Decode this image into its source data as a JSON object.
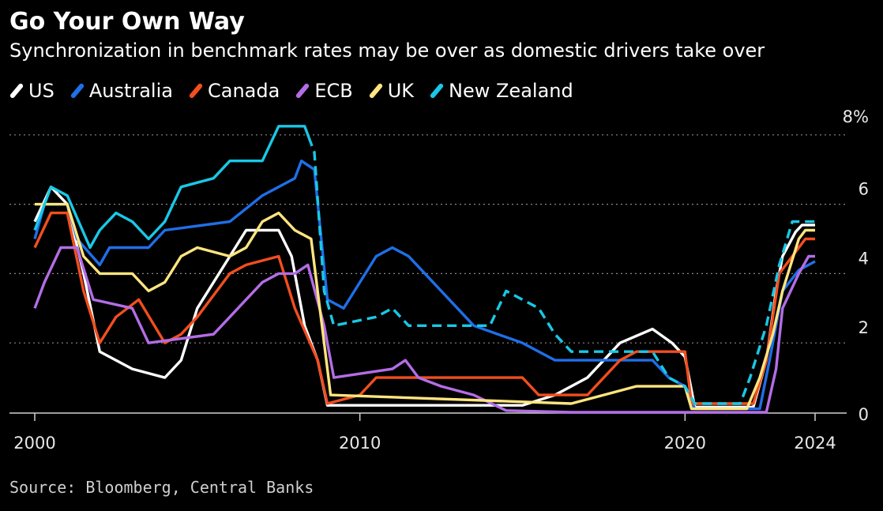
{
  "chart_data": {
    "type": "line",
    "title": "Go Your Own Way",
    "subtitle": "Synchronization in benchmark rates may be over as domestic drivers take over",
    "source": "Source: Bloomberg, Central Banks",
    "xlim": [
      2000,
      2024.6
    ],
    "ylim": [
      0,
      8.2
    ],
    "x_ticks": [
      {
        "value": 2000,
        "label": "2000"
      },
      {
        "value": 2010,
        "label": "2010"
      },
      {
        "value": 2020,
        "label": "2020"
      },
      {
        "value": 2024,
        "label": "2024"
      }
    ],
    "y_ticks": [
      {
        "value": 0,
        "label": "0"
      },
      {
        "value": 2,
        "label": "2"
      },
      {
        "value": 4,
        "label": "4"
      },
      {
        "value": 6,
        "label": "6"
      },
      {
        "value": 8,
        "label": "8%"
      }
    ],
    "grid": "horizontal dotted",
    "legend_position": "top-left",
    "series": [
      {
        "name": "US",
        "color": "#ffffff",
        "dashed_after": null,
        "points": [
          [
            2000,
            5.5
          ],
          [
            2000.5,
            6.5
          ],
          [
            2001,
            6.0
          ],
          [
            2001.5,
            4.0
          ],
          [
            2002,
            1.75
          ],
          [
            2003,
            1.25
          ],
          [
            2004,
            1.0
          ],
          [
            2004.5,
            1.5
          ],
          [
            2005,
            3.0
          ],
          [
            2006,
            4.5
          ],
          [
            2006.5,
            5.25
          ],
          [
            2007.5,
            5.25
          ],
          [
            2007.9,
            4.5
          ],
          [
            2008.3,
            2.5
          ],
          [
            2008.7,
            1.5
          ],
          [
            2009,
            0.2
          ],
          [
            2015,
            0.2
          ],
          [
            2016,
            0.5
          ],
          [
            2017,
            1.0
          ],
          [
            2018,
            2.0
          ],
          [
            2019,
            2.4
          ],
          [
            2019.6,
            2.0
          ],
          [
            2020,
            1.6
          ],
          [
            2020.3,
            0.15
          ],
          [
            2022.1,
            0.15
          ],
          [
            2022.5,
            1.5
          ],
          [
            2022.8,
            3.5
          ],
          [
            2023,
            4.5
          ],
          [
            2023.4,
            5.2
          ],
          [
            2023.6,
            5.4
          ],
          [
            2024,
            5.4
          ]
        ]
      },
      {
        "name": "Australia",
        "color": "#1f6fe8",
        "dashed_after": null,
        "points": [
          [
            2000,
            5.0
          ],
          [
            2000.3,
            6.0
          ],
          [
            2001,
            6.0
          ],
          [
            2001.3,
            5.0
          ],
          [
            2002,
            4.25
          ],
          [
            2002.3,
            4.75
          ],
          [
            2003.5,
            4.75
          ],
          [
            2004,
            5.25
          ],
          [
            2006,
            5.5
          ],
          [
            2007,
            6.25
          ],
          [
            2008,
            6.75
          ],
          [
            2008.2,
            7.25
          ],
          [
            2008.6,
            7.0
          ],
          [
            2009,
            3.25
          ],
          [
            2009.5,
            3.0
          ],
          [
            2010,
            3.75
          ],
          [
            2010.5,
            4.5
          ],
          [
            2011,
            4.75
          ],
          [
            2011.5,
            4.5
          ],
          [
            2012,
            4.0
          ],
          [
            2012.5,
            3.5
          ],
          [
            2013,
            3.0
          ],
          [
            2013.5,
            2.5
          ],
          [
            2015,
            2.0
          ],
          [
            2016,
            1.5
          ],
          [
            2019,
            1.5
          ],
          [
            2019.5,
            1.0
          ],
          [
            2020,
            0.75
          ],
          [
            2020.3,
            0.1
          ],
          [
            2022.3,
            0.1
          ],
          [
            2022.6,
            1.5
          ],
          [
            2022.9,
            3.0
          ],
          [
            2023,
            3.5
          ],
          [
            2023.5,
            4.1
          ],
          [
            2024,
            4.35
          ]
        ]
      },
      {
        "name": "Canada",
        "color": "#f24e1e",
        "dashed_after": null,
        "points": [
          [
            2000,
            4.75
          ],
          [
            2000.5,
            5.75
          ],
          [
            2001,
            5.75
          ],
          [
            2001.5,
            3.5
          ],
          [
            2002,
            2.0
          ],
          [
            2002.5,
            2.75
          ],
          [
            2003.2,
            3.25
          ],
          [
            2004,
            2.0
          ],
          [
            2004.5,
            2.25
          ],
          [
            2005,
            2.75
          ],
          [
            2006,
            4.0
          ],
          [
            2006.5,
            4.25
          ],
          [
            2007.5,
            4.5
          ],
          [
            2008,
            3.0
          ],
          [
            2008.7,
            1.5
          ],
          [
            2009,
            0.25
          ],
          [
            2010,
            0.5
          ],
          [
            2010.5,
            1.0
          ],
          [
            2015,
            1.0
          ],
          [
            2015.5,
            0.5
          ],
          [
            2017,
            0.5
          ],
          [
            2017.5,
            1.0
          ],
          [
            2018,
            1.5
          ],
          [
            2018.5,
            1.75
          ],
          [
            2020,
            1.75
          ],
          [
            2020.2,
            0.25
          ],
          [
            2022.1,
            0.25
          ],
          [
            2022.5,
            1.5
          ],
          [
            2022.9,
            4.0
          ],
          [
            2023.5,
            4.75
          ],
          [
            2023.7,
            5.0
          ],
          [
            2024,
            5.0
          ]
        ]
      },
      {
        "name": "ECB",
        "color": "#b36de6",
        "dashed_after": null,
        "points": [
          [
            2000,
            3.0
          ],
          [
            2000.3,
            3.75
          ],
          [
            2000.8,
            4.75
          ],
          [
            2001.3,
            4.75
          ],
          [
            2001.8,
            3.25
          ],
          [
            2003,
            3.0
          ],
          [
            2003.5,
            2.0
          ],
          [
            2005.5,
            2.25
          ],
          [
            2006,
            2.75
          ],
          [
            2006.5,
            3.25
          ],
          [
            2007,
            3.75
          ],
          [
            2007.5,
            4.0
          ],
          [
            2008,
            4.0
          ],
          [
            2008.4,
            4.25
          ],
          [
            2008.9,
            2.5
          ],
          [
            2009.2,
            1.0
          ],
          [
            2011,
            1.25
          ],
          [
            2011.4,
            1.5
          ],
          [
            2011.8,
            1.0
          ],
          [
            2012.5,
            0.75
          ],
          [
            2013.5,
            0.5
          ],
          [
            2014.5,
            0.05
          ],
          [
            2016.5,
            0.0
          ],
          [
            2022.5,
            0.0
          ],
          [
            2022.8,
            1.25
          ],
          [
            2023,
            3.0
          ],
          [
            2023.5,
            4.0
          ],
          [
            2023.8,
            4.5
          ],
          [
            2024,
            4.5
          ]
        ]
      },
      {
        "name": "UK",
        "color": "#ffe57f",
        "dashed_after": null,
        "points": [
          [
            2000,
            6.0
          ],
          [
            2001,
            6.0
          ],
          [
            2001.5,
            4.5
          ],
          [
            2002,
            4.0
          ],
          [
            2003,
            4.0
          ],
          [
            2003.5,
            3.5
          ],
          [
            2004,
            3.75
          ],
          [
            2004.5,
            4.5
          ],
          [
            2005,
            4.75
          ],
          [
            2006,
            4.5
          ],
          [
            2006.5,
            4.75
          ],
          [
            2007,
            5.5
          ],
          [
            2007.5,
            5.75
          ],
          [
            2008,
            5.25
          ],
          [
            2008.5,
            5.0
          ],
          [
            2008.9,
            2.0
          ],
          [
            2009.1,
            0.5
          ],
          [
            2016.5,
            0.25
          ],
          [
            2017.5,
            0.5
          ],
          [
            2018.5,
            0.75
          ],
          [
            2020,
            0.75
          ],
          [
            2020.2,
            0.1
          ],
          [
            2021.9,
            0.1
          ],
          [
            2022.3,
            1.0
          ],
          [
            2022.7,
            2.25
          ],
          [
            2023,
            3.5
          ],
          [
            2023.5,
            5.0
          ],
          [
            2023.7,
            5.25
          ],
          [
            2024,
            5.25
          ]
        ]
      },
      {
        "name": "New Zealand",
        "color": "#19c8e6",
        "dashed_after": 2008.5,
        "points": [
          [
            2000,
            5.25
          ],
          [
            2000.5,
            6.5
          ],
          [
            2001,
            6.25
          ],
          [
            2001.7,
            4.75
          ],
          [
            2002,
            5.25
          ],
          [
            2002.5,
            5.75
          ],
          [
            2003,
            5.5
          ],
          [
            2003.5,
            5.0
          ],
          [
            2004,
            5.5
          ],
          [
            2004.5,
            6.5
          ],
          [
            2005.5,
            6.75
          ],
          [
            2006,
            7.25
          ],
          [
            2007,
            7.25
          ],
          [
            2007.5,
            8.25
          ],
          [
            2008.3,
            8.25
          ],
          [
            2008.6,
            7.5
          ],
          [
            2008.9,
            3.5
          ],
          [
            2009.2,
            2.5
          ],
          [
            2010.5,
            2.75
          ],
          [
            2011,
            3.0
          ],
          [
            2011.5,
            2.5
          ],
          [
            2014,
            2.5
          ],
          [
            2014.5,
            3.5
          ],
          [
            2015.5,
            3.0
          ],
          [
            2016,
            2.25
          ],
          [
            2016.5,
            1.75
          ],
          [
            2019,
            1.75
          ],
          [
            2019.5,
            1.0
          ],
          [
            2020,
            0.75
          ],
          [
            2020.3,
            0.25
          ],
          [
            2021.7,
            0.25
          ],
          [
            2022,
            1.0
          ],
          [
            2022.5,
            2.5
          ],
          [
            2022.9,
            4.25
          ],
          [
            2023.3,
            5.5
          ],
          [
            2024,
            5.5
          ]
        ]
      }
    ]
  }
}
